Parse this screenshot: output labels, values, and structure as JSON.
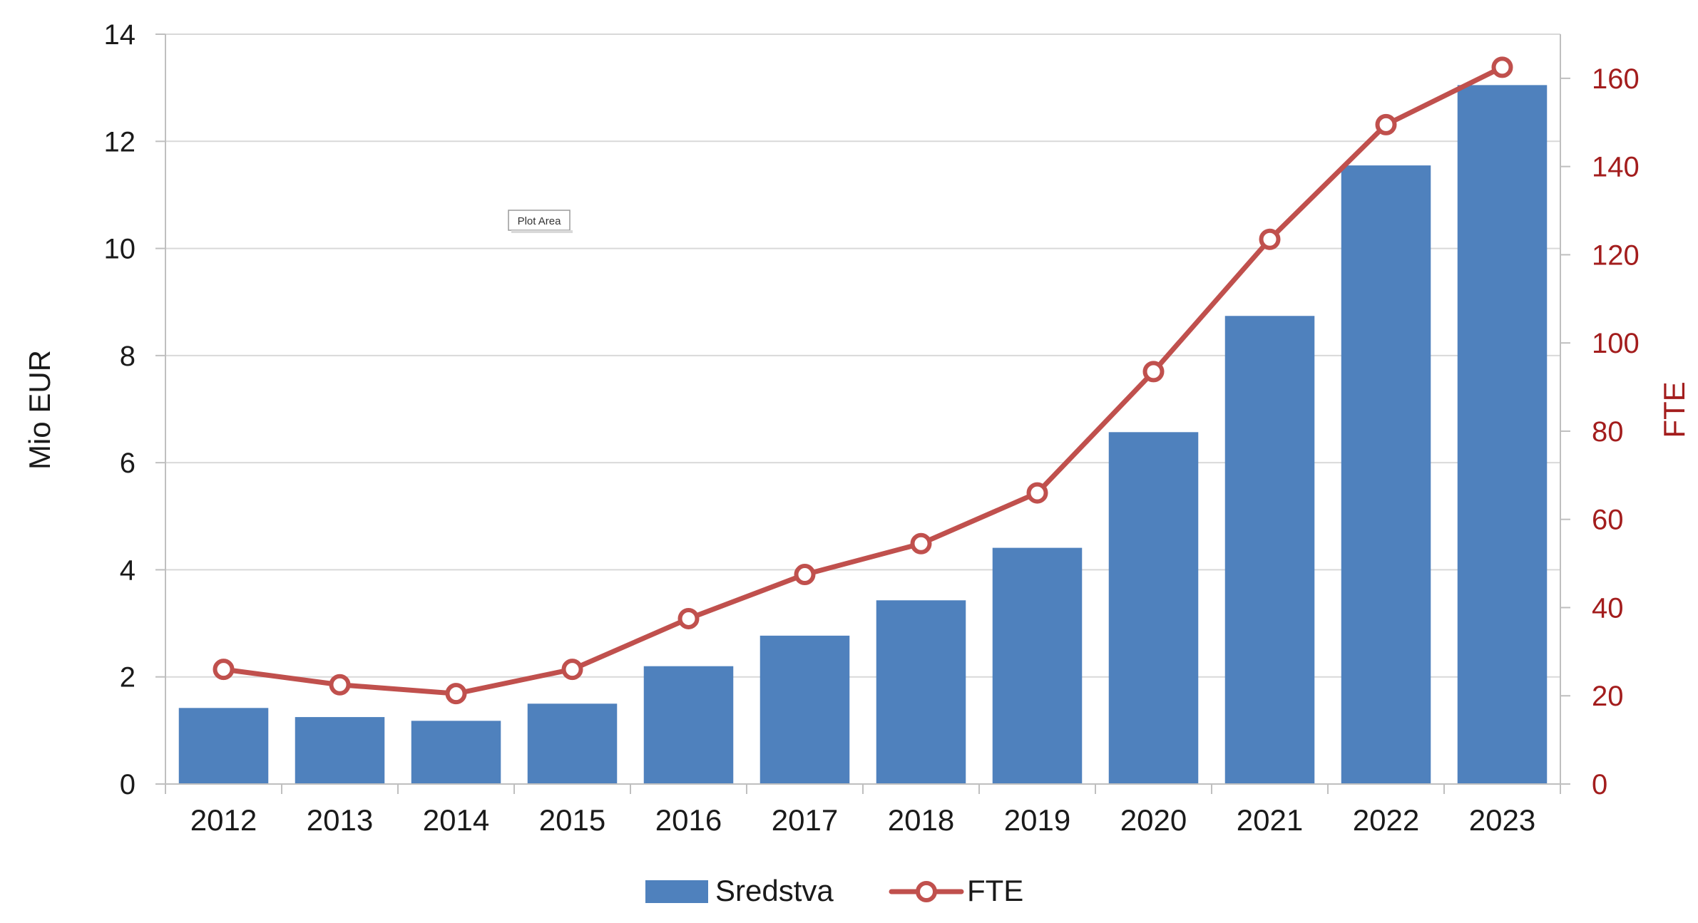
{
  "chart_data": {
    "type": "bar",
    "categories": [
      "2012",
      "2013",
      "2014",
      "2015",
      "2016",
      "2017",
      "2018",
      "2019",
      "2020",
      "2021",
      "2022",
      "2023"
    ],
    "series": [
      {
        "name": "Sredstva",
        "type": "bar",
        "axis": "left",
        "values": [
          1.42,
          1.25,
          1.18,
          1.5,
          2.2,
          2.77,
          3.43,
          4.41,
          6.57,
          8.74,
          11.55,
          13.05
        ],
        "color": "#4f81bd"
      },
      {
        "name": "FTE",
        "type": "line",
        "axis": "right",
        "values": [
          26,
          22.5,
          20.5,
          26,
          37.5,
          47.5,
          54.5,
          66,
          93.5,
          123.5,
          149.5,
          162.5
        ],
        "color": "#c0504d"
      }
    ],
    "ylabel": "Mio EUR",
    "ylim": [
      0,
      14
    ],
    "yticks": [
      "0",
      "2",
      "4",
      "6",
      "8",
      "10",
      "12",
      "14"
    ],
    "y2label": "FTE",
    "y2lim": [
      0,
      170
    ],
    "y2ticks": [
      "0",
      "20",
      "40",
      "60",
      "80",
      "100",
      "120",
      "140",
      "160"
    ],
    "y2tick_color": "#a31d1d",
    "grid": true,
    "legend_position": "bottom",
    "tooltip": "Plot Area"
  }
}
